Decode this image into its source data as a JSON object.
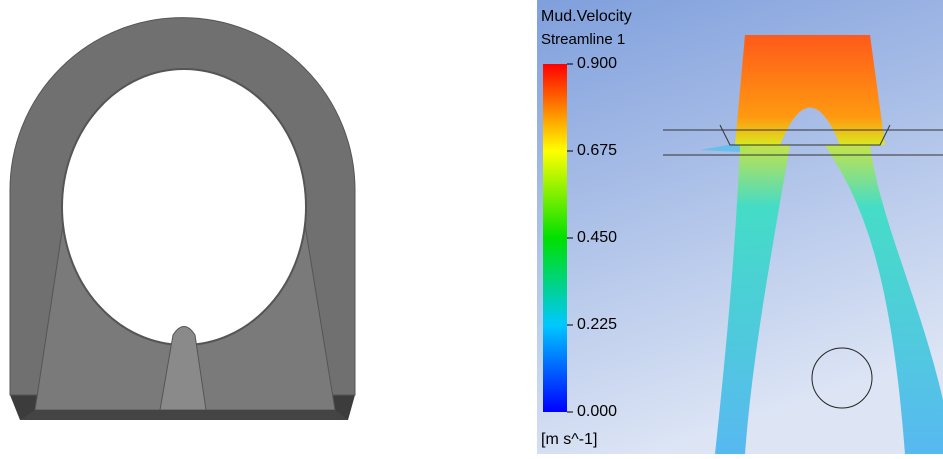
{
  "colorbar": {
    "title": "Mud.Velocity",
    "subtitle": "Streamline 1",
    "unit": "[m s^-1]",
    "range": [
      0,
      0.9
    ],
    "ticks": [
      {
        "value": 0.9,
        "label": "0.900"
      },
      {
        "value": 0.675,
        "label": "0.675"
      },
      {
        "value": 0.45,
        "label": "0.450"
      },
      {
        "value": 0.225,
        "label": "0.225"
      },
      {
        "value": 0,
        "label": "0.000"
      }
    ]
  }
}
